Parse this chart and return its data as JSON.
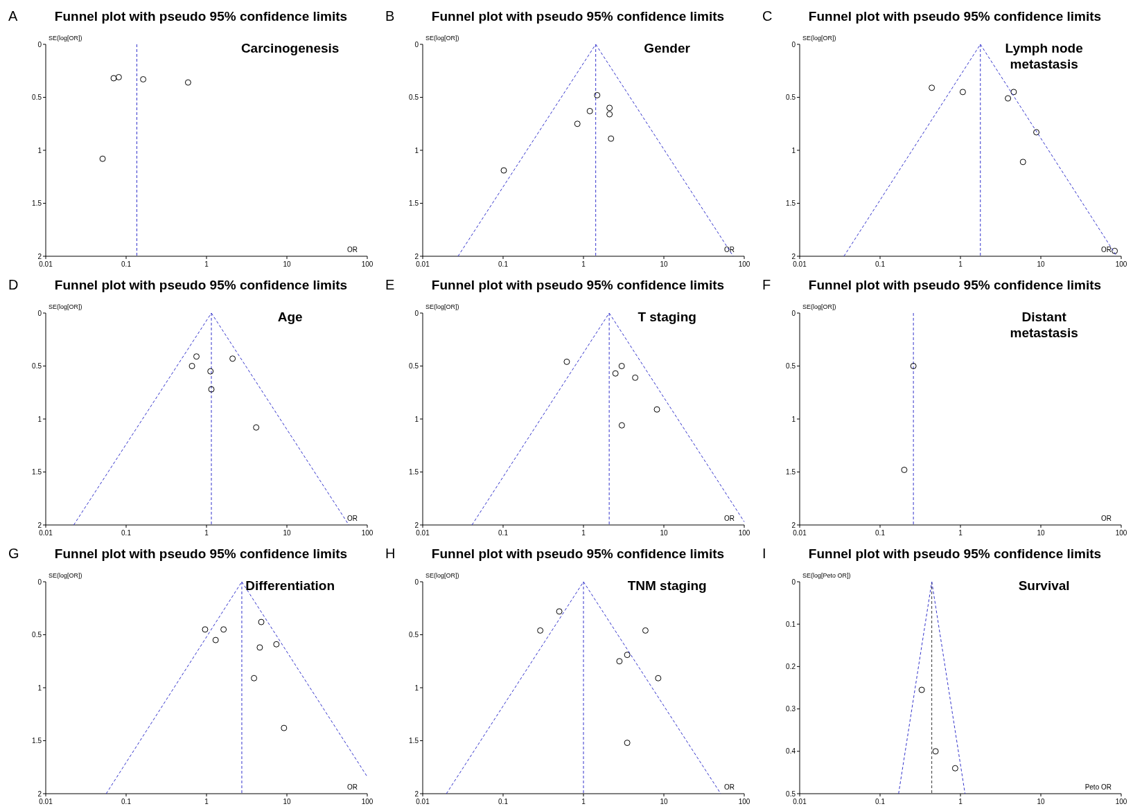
{
  "chart_data": [
    {
      "type": "scatter",
      "title": "Funnel plot with pseudo 95% confidence limits",
      "subtitle": "Carcinogenesis",
      "annotations": [
        "A"
      ],
      "xlabel": "OR",
      "ylabel": "SE(log[OR])",
      "log": "x",
      "xlim": [
        0.01,
        100
      ],
      "xticks": [
        0.01,
        0.1,
        1,
        10,
        100
      ],
      "ylim": [
        2,
        0
      ],
      "yticks": [
        0,
        0.5,
        1,
        1.5,
        2
      ],
      "grid": false,
      "series": [
        {
          "marker": "circle",
          "color": "#000000",
          "x": [
            0.07,
            0.081,
            0.163,
            0.59,
            0.051
          ],
          "values": [
            0.32,
            0.31,
            0.33,
            0.36,
            1.08
          ]
        }
      ],
      "ref_lines": [
        {
          "axis": "x",
          "value": 0.136,
          "color": "#3333cc",
          "line_style": "dashed"
        }
      ]
    },
    {
      "type": "scatter",
      "title": "Funnel plot with pseudo 95% confidence limits",
      "subtitle": "Gender",
      "annotations": [
        "B"
      ],
      "xlabel": "OR",
      "ylabel": "SE(log[OR])",
      "log": "x",
      "xlim": [
        0.01,
        100
      ],
      "xticks": [
        0.01,
        0.1,
        1,
        10,
        100
      ],
      "ylim": [
        2,
        0
      ],
      "yticks": [
        0,
        0.5,
        1,
        1.5,
        2
      ],
      "grid": false,
      "series": [
        {
          "marker": "circle",
          "color": "#000000",
          "x": [
            1.48,
            2.11,
            2.11,
            1.2,
            0.84,
            2.2,
            0.102
          ],
          "values": [
            0.48,
            0.6,
            0.66,
            0.63,
            0.75,
            0.89,
            1.19
          ]
        },
        {
          "type": "line",
          "color": "#3333cc",
          "line_style": "dashed",
          "x": [
            0.0275,
            1.42
          ],
          "values": [
            2,
            0
          ]
        },
        {
          "type": "line",
          "color": "#3333cc",
          "line_style": "dashed",
          "x": [
            1.42,
            73
          ],
          "values": [
            0,
            2
          ]
        }
      ],
      "ref_lines": [
        {
          "axis": "x",
          "value": 1.42,
          "color": "#3333cc",
          "line_style": "dashed"
        }
      ]
    },
    {
      "type": "scatter",
      "title": "Funnel plot with pseudo 95% confidence limits",
      "subtitle": "Lymph node metastasis",
      "annotations": [
        "C"
      ],
      "xlabel": "OR",
      "ylabel": "SE(log[OR])",
      "log": "x",
      "xlim": [
        0.01,
        100
      ],
      "xticks": [
        0.01,
        0.1,
        1,
        10,
        100
      ],
      "ylim": [
        2,
        0
      ],
      "yticks": [
        0,
        0.5,
        1,
        1.5,
        2
      ],
      "grid": false,
      "series": [
        {
          "marker": "circle",
          "color": "#000000",
          "x": [
            0.44,
            1.07,
            3.9,
            4.6,
            8.8,
            6.0,
            83
          ],
          "values": [
            0.41,
            0.45,
            0.51,
            0.45,
            0.83,
            1.11,
            1.95
          ]
        },
        {
          "type": "line",
          "color": "#3333cc",
          "line_style": "dashed",
          "x": [
            0.0355,
            1.77
          ],
          "values": [
            2,
            0
          ]
        },
        {
          "type": "line",
          "color": "#3333cc",
          "line_style": "dashed",
          "x": [
            1.77,
            88
          ],
          "values": [
            0,
            2
          ]
        }
      ],
      "ref_lines": [
        {
          "axis": "x",
          "value": 1.77,
          "color": "#3333cc",
          "line_style": "dashed"
        }
      ]
    },
    {
      "type": "scatter",
      "title": "Funnel plot with pseudo 95% confidence limits",
      "subtitle": "Age",
      "annotations": [
        "D"
      ],
      "xlabel": "OR",
      "ylabel": "SE(log[OR])",
      "log": "x",
      "xlim": [
        0.01,
        100
      ],
      "xticks": [
        0.01,
        0.1,
        1,
        10,
        100
      ],
      "ylim": [
        2,
        0
      ],
      "yticks": [
        0,
        0.5,
        1,
        1.5,
        2
      ],
      "grid": false,
      "series": [
        {
          "marker": "circle",
          "color": "#000000",
          "x": [
            0.75,
            0.66,
            1.12,
            1.15,
            2.11,
            4.15
          ],
          "values": [
            0.41,
            0.5,
            0.55,
            0.72,
            0.43,
            1.08
          ]
        },
        {
          "type": "line",
          "color": "#3333cc",
          "line_style": "dashed",
          "x": [
            0.0223,
            1.15
          ],
          "values": [
            2,
            0
          ]
        },
        {
          "type": "line",
          "color": "#3333cc",
          "line_style": "dashed",
          "x": [
            1.15,
            59
          ],
          "values": [
            0,
            2
          ]
        }
      ],
      "ref_lines": [
        {
          "axis": "x",
          "value": 1.15,
          "color": "#3333cc",
          "line_style": "dashed"
        }
      ]
    },
    {
      "type": "scatter",
      "title": "Funnel plot with pseudo 95% confidence limits",
      "subtitle": "T staging",
      "annotations": [
        "E"
      ],
      "xlabel": "OR",
      "ylabel": "SE(log[OR])",
      "log": "x",
      "xlim": [
        0.01,
        100
      ],
      "xticks": [
        0.01,
        0.1,
        1,
        10,
        100
      ],
      "ylim": [
        2,
        0
      ],
      "yticks": [
        0,
        0.5,
        1,
        1.5,
        2
      ],
      "grid": false,
      "series": [
        {
          "marker": "circle",
          "color": "#000000",
          "x": [
            0.62,
            2.99,
            2.5,
            4.4,
            8.2,
            3.0
          ],
          "values": [
            0.46,
            0.5,
            0.57,
            0.61,
            0.91,
            1.06
          ]
        },
        {
          "type": "line",
          "color": "#3333cc",
          "line_style": "dashed",
          "x": [
            0.041,
            2.09
          ],
          "values": [
            2,
            0
          ]
        },
        {
          "type": "line",
          "color": "#3333cc",
          "line_style": "dashed",
          "x": [
            2.09,
            100
          ],
          "values": [
            0,
            1.97
          ]
        }
      ],
      "ref_lines": [
        {
          "axis": "x",
          "value": 2.09,
          "color": "#3333cc",
          "line_style": "dashed"
        }
      ]
    },
    {
      "type": "scatter",
      "title": "Funnel plot with pseudo 95% confidence limits",
      "subtitle": "Distant metastasis",
      "annotations": [
        "F"
      ],
      "xlabel": "OR",
      "ylabel": "SE(log[OR])",
      "log": "x",
      "xlim": [
        0.01,
        100
      ],
      "xticks": [
        0.01,
        0.1,
        1,
        10,
        100
      ],
      "ylim": [
        2,
        0
      ],
      "yticks": [
        0,
        0.5,
        1,
        1.5,
        2
      ],
      "grid": false,
      "series": [
        {
          "marker": "circle",
          "color": "#000000",
          "x": [
            0.26,
            0.2
          ],
          "values": [
            0.5,
            1.48
          ]
        }
      ],
      "ref_lines": [
        {
          "axis": "x",
          "value": 0.26,
          "color": "#3333cc",
          "line_style": "dashed"
        }
      ]
    },
    {
      "type": "scatter",
      "title": "Funnel plot with pseudo 95% confidence limits",
      "subtitle": "Differentiation",
      "annotations": [
        "G"
      ],
      "xlabel": "OR",
      "ylabel": "SE(log[OR])",
      "log": "x",
      "xlim": [
        0.01,
        100
      ],
      "xticks": [
        0.01,
        0.1,
        1,
        10,
        100
      ],
      "ylim": [
        2,
        0
      ],
      "yticks": [
        0,
        0.5,
        1,
        1.5,
        2
      ],
      "grid": false,
      "series": [
        {
          "marker": "circle",
          "color": "#000000",
          "x": [
            0.96,
            1.3,
            1.63,
            4.8,
            4.6,
            7.4,
            3.9,
            9.2
          ],
          "values": [
            0.45,
            0.55,
            0.45,
            0.38,
            0.62,
            0.59,
            0.91,
            1.38
          ]
        },
        {
          "type": "line",
          "color": "#3333cc",
          "line_style": "dashed",
          "x": [
            0.0565,
            2.75
          ],
          "values": [
            2,
            0
          ]
        },
        {
          "type": "line",
          "color": "#3333cc",
          "line_style": "dashed",
          "x": [
            2.75,
            100
          ],
          "values": [
            0,
            1.84
          ]
        }
      ],
      "ref_lines": [
        {
          "axis": "x",
          "value": 2.75,
          "color": "#3333cc",
          "line_style": "dashed"
        }
      ]
    },
    {
      "type": "scatter",
      "title": "Funnel plot with pseudo 95% confidence limits",
      "subtitle": "TNM staging",
      "annotations": [
        "H"
      ],
      "xlabel": "OR",
      "ylabel": "SE(log[OR])",
      "log": "x",
      "xlim": [
        0.01,
        100
      ],
      "xticks": [
        0.01,
        0.1,
        1,
        10,
        100
      ],
      "ylim": [
        2,
        0
      ],
      "yticks": [
        0,
        0.5,
        1,
        1.5,
        2
      ],
      "grid": false,
      "series": [
        {
          "marker": "circle",
          "color": "#000000",
          "x": [
            0.5,
            0.29,
            5.9,
            3.5,
            2.8,
            8.5,
            3.5
          ],
          "values": [
            0.28,
            0.46,
            0.46,
            0.69,
            0.75,
            0.91,
            1.52
          ]
        },
        {
          "type": "line",
          "color": "#3333cc",
          "line_style": "dashed",
          "x": [
            0.0197,
            1.0
          ],
          "values": [
            2,
            0
          ]
        },
        {
          "type": "line",
          "color": "#3333cc",
          "line_style": "dashed",
          "x": [
            1.0,
            51
          ],
          "values": [
            0,
            2
          ]
        }
      ],
      "ref_lines": [
        {
          "axis": "x",
          "value": 1.0,
          "color": "#3333cc",
          "line_style": "dashed"
        }
      ]
    },
    {
      "type": "scatter",
      "title": "Funnel plot with pseudo 95% confidence limits",
      "subtitle": "Survival",
      "annotations": [
        "I"
      ],
      "xlabel": "Peto OR",
      "ylabel": "SE(log[Peto OR])",
      "log": "x",
      "xlim": [
        0.01,
        100
      ],
      "xticks": [
        0.01,
        0.1,
        1,
        10,
        100
      ],
      "ylim": [
        0.5,
        0
      ],
      "yticks": [
        0,
        0.1,
        0.2,
        0.3,
        0.4,
        0.5
      ],
      "grid": false,
      "series": [
        {
          "marker": "circle",
          "color": "#000000",
          "x": [
            0.33,
            0.49,
            0.86
          ],
          "values": [
            0.255,
            0.4,
            0.44
          ]
        },
        {
          "type": "line",
          "color": "#3333cc",
          "line_style": "dashed",
          "x": [
            0.17,
            0.44
          ],
          "values": [
            0.5,
            0
          ]
        },
        {
          "type": "line",
          "color": "#3333cc",
          "line_style": "dashed",
          "x": [
            0.44,
            1.14
          ],
          "values": [
            0,
            0.5
          ]
        }
      ],
      "ref_lines": [
        {
          "axis": "x",
          "value": 0.44,
          "color": "#333333",
          "line_style": "dashed"
        }
      ]
    }
  ]
}
